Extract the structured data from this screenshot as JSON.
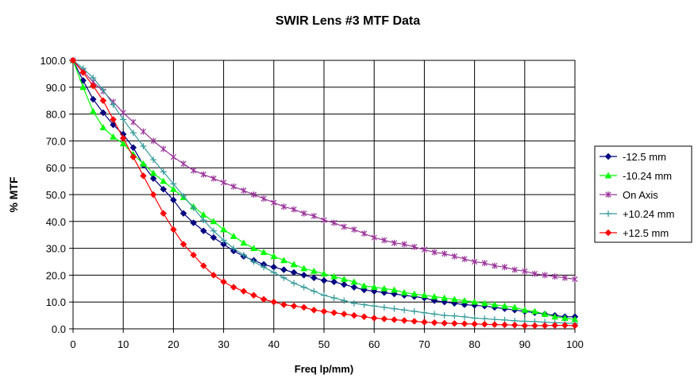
{
  "chart_data": {
    "type": "line",
    "title": "SWIR  Lens #3 MTF Data",
    "xlabel": "Freq lp/mm)",
    "ylabel": "% MTF",
    "xlim": [
      0,
      100
    ],
    "ylim": [
      0,
      100
    ],
    "x_ticks": [
      0,
      10,
      20,
      30,
      40,
      50,
      60,
      70,
      80,
      90,
      100
    ],
    "y_ticks": [
      0,
      10,
      20,
      30,
      40,
      50,
      60,
      70,
      80,
      90,
      100
    ],
    "x_tick_labels": [
      "0",
      "10",
      "20",
      "30",
      "40",
      "50",
      "60",
      "70",
      "80",
      "90",
      "100"
    ],
    "y_tick_labels": [
      "0.0",
      "10.0",
      "20.0",
      "30.0",
      "40.0",
      "50.0",
      "60.0",
      "70.0",
      "80.0",
      "90.0",
      "100.0"
    ],
    "grid": true,
    "legend_position": "right",
    "x": [
      0,
      2,
      4,
      6,
      8,
      10,
      12,
      14,
      16,
      18,
      20,
      22,
      24,
      26,
      28,
      30,
      32,
      34,
      36,
      38,
      40,
      42,
      44,
      46,
      48,
      50,
      52,
      54,
      56,
      58,
      60,
      62,
      64,
      66,
      68,
      70,
      72,
      74,
      76,
      78,
      80,
      82,
      84,
      86,
      88,
      90,
      92,
      94,
      96,
      98,
      100
    ],
    "series": [
      {
        "name": "-12.5 mm",
        "color": "#000080",
        "marker": "diamond",
        "values": [
          100.0,
          92.5,
          85.5,
          80.5,
          76.0,
          72.5,
          67.5,
          61.0,
          56.0,
          52.0,
          48.0,
          43.0,
          39.5,
          36.5,
          34.0,
          31.5,
          29.0,
          27.0,
          25.5,
          24.0,
          23.0,
          22.0,
          21.0,
          20.0,
          19.0,
          18.0,
          17.5,
          16.5,
          15.5,
          14.5,
          14.0,
          13.5,
          13.0,
          12.5,
          12.0,
          11.5,
          10.5,
          10.0,
          9.5,
          9.0,
          8.8,
          8.5,
          8.0,
          7.5,
          7.0,
          6.5,
          6.0,
          5.5,
          5.0,
          4.5,
          4.5
        ]
      },
      {
        "name": "-10.24 mm",
        "color": "#00ff00",
        "marker": "triangle",
        "values": [
          100.0,
          90.0,
          81.0,
          75.0,
          71.5,
          69.0,
          65.0,
          61.5,
          58.0,
          55.0,
          52.0,
          49.0,
          45.5,
          42.5,
          40.0,
          37.0,
          34.5,
          32.0,
          30.0,
          28.5,
          27.0,
          25.5,
          24.0,
          22.5,
          21.5,
          20.5,
          19.5,
          18.5,
          17.5,
          16.0,
          15.5,
          15.0,
          14.5,
          13.5,
          13.0,
          12.5,
          12.0,
          11.5,
          11.0,
          10.5,
          10.0,
          9.5,
          9.0,
          8.5,
          8.0,
          7.0,
          6.5,
          5.5,
          4.5,
          4.0,
          3.5
        ]
      },
      {
        "name": "On Axis",
        "color": "#993399",
        "marker": "star",
        "values": [
          100.0,
          96.0,
          92.0,
          88.5,
          84.5,
          80.5,
          77.0,
          73.5,
          70.0,
          67.0,
          64.0,
          61.5,
          59.0,
          57.5,
          56.0,
          54.5,
          53.0,
          51.5,
          50.0,
          48.5,
          47.0,
          45.5,
          44.5,
          43.0,
          42.0,
          40.5,
          39.5,
          38.0,
          37.0,
          35.5,
          34.0,
          33.0,
          32.0,
          31.5,
          30.5,
          29.5,
          28.5,
          28.0,
          27.0,
          26.0,
          25.0,
          24.5,
          23.5,
          23.0,
          22.0,
          21.5,
          20.5,
          20.0,
          19.5,
          19.0,
          18.5
        ]
      },
      {
        "name": "+10.24 mm",
        "color": "#339999",
        "marker": "plus",
        "values": [
          100.0,
          97.0,
          93.5,
          89.0,
          83.5,
          78.0,
          73.0,
          68.0,
          63.0,
          58.5,
          54.0,
          49.5,
          45.0,
          40.5,
          36.5,
          33.0,
          30.0,
          27.5,
          25.0,
          23.0,
          21.0,
          19.0,
          17.0,
          15.5,
          14.0,
          12.5,
          11.5,
          10.5,
          9.5,
          9.0,
          8.5,
          8.0,
          7.5,
          7.0,
          6.5,
          6.0,
          5.5,
          5.0,
          4.8,
          4.5,
          4.0,
          3.8,
          3.5,
          3.3,
          3.0,
          2.8,
          2.7,
          2.5,
          2.3,
          2.2,
          2.0
        ]
      },
      {
        "name": "+12.5 mm",
        "color": "#ff0000",
        "marker": "diamond",
        "values": [
          100.0,
          95.5,
          90.5,
          85.0,
          78.0,
          71.0,
          64.0,
          57.0,
          50.0,
          43.0,
          37.0,
          31.5,
          27.5,
          23.5,
          20.0,
          17.5,
          15.5,
          14.0,
          12.5,
          11.0,
          10.0,
          9.0,
          8.5,
          8.0,
          7.0,
          6.5,
          6.0,
          5.5,
          5.0,
          4.5,
          4.0,
          3.7,
          3.4,
          3.1,
          2.8,
          2.5,
          2.3,
          2.1,
          2.0,
          1.9,
          1.8,
          1.7,
          1.6,
          1.5,
          1.4,
          1.2,
          1.2,
          1.2,
          1.3,
          1.3,
          1.2
        ]
      }
    ]
  }
}
